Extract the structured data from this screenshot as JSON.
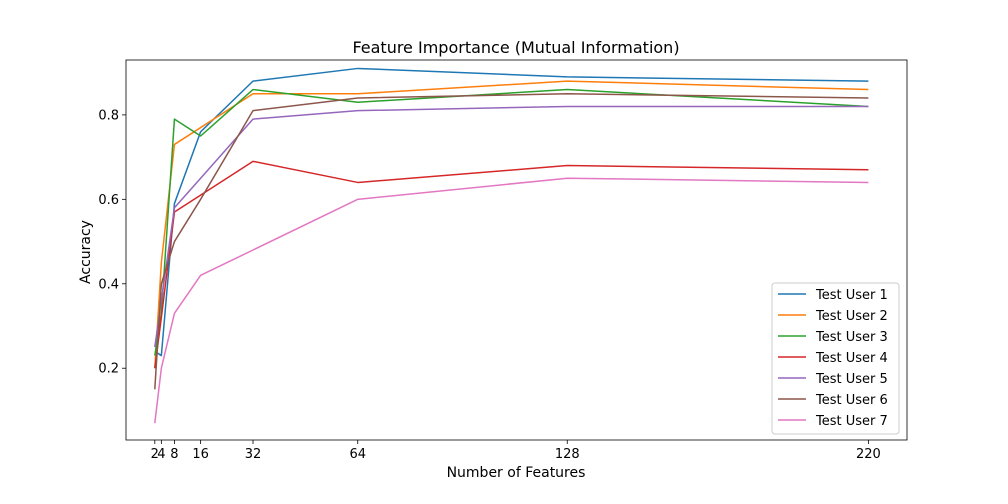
{
  "chart_data": {
    "type": "line",
    "title": "Feature Importance (Mutual Information)",
    "xlabel": "Number of Features",
    "ylabel": "Accuracy",
    "xlim": [
      -6.8,
      231.8
    ],
    "ylim": [
      0.03,
      0.93
    ],
    "x": [
      2,
      4,
      8,
      16,
      32,
      64,
      128,
      220
    ],
    "xticks": [
      2,
      4,
      8,
      16,
      32,
      64,
      128,
      220
    ],
    "xtick_labels": [
      "2",
      "4",
      "8",
      "16",
      "32",
      "64",
      "128",
      "220"
    ],
    "yticks": [
      0.2,
      0.4,
      0.6,
      0.8
    ],
    "ytick_labels": [
      "0.2",
      "0.4",
      "0.6",
      "0.8"
    ],
    "grid": false,
    "legend_position": "lower-right",
    "series": [
      {
        "name": "Test User 1",
        "color": "#1f77b4",
        "values": [
          0.24,
          0.23,
          0.59,
          0.76,
          0.88,
          0.91,
          0.89,
          0.88
        ]
      },
      {
        "name": "Test User 2",
        "color": "#ff7f0e",
        "values": [
          0.2,
          0.45,
          0.73,
          0.77,
          0.85,
          0.85,
          0.88,
          0.86
        ]
      },
      {
        "name": "Test User 3",
        "color": "#2ca02c",
        "values": [
          0.23,
          0.33,
          0.79,
          0.75,
          0.86,
          0.83,
          0.86,
          0.82
        ]
      },
      {
        "name": "Test User 4",
        "color": "#d62728",
        "values": [
          0.2,
          0.32,
          0.57,
          0.61,
          0.69,
          0.64,
          0.68,
          0.67
        ]
      },
      {
        "name": "Test User 5",
        "color": "#9467bd",
        "values": [
          0.25,
          0.36,
          0.58,
          0.65,
          0.79,
          0.81,
          0.82,
          0.82
        ]
      },
      {
        "name": "Test User 6",
        "color": "#8c564b",
        "values": [
          0.15,
          0.4,
          0.5,
          0.6,
          0.81,
          0.84,
          0.85,
          0.84
        ]
      },
      {
        "name": "Test User 7",
        "color": "#e377c2",
        "values": [
          0.07,
          0.2,
          0.33,
          0.42,
          0.48,
          0.6,
          0.65,
          0.64
        ]
      }
    ]
  }
}
